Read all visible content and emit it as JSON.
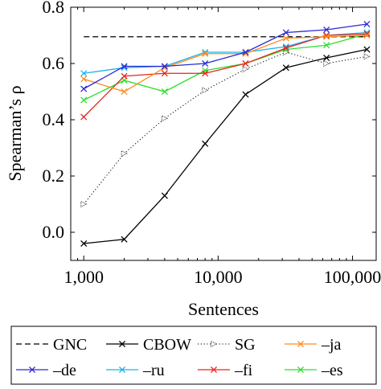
{
  "chart_data": {
    "type": "line",
    "title": "",
    "xlabel": "Sentences",
    "ylabel": "Spearman’s ρ",
    "x_scale": "log",
    "xlim": [
      800,
      150000
    ],
    "ylim": [
      -0.1,
      0.8
    ],
    "x_ticks": [
      {
        "value": 1000,
        "label": "1,000"
      },
      {
        "value": 10000,
        "label": "10,000"
      },
      {
        "value": 100000,
        "label": "100,000"
      }
    ],
    "y_ticks": [
      {
        "value": 0.0,
        "label": "0.0"
      },
      {
        "value": 0.2,
        "label": "0.2"
      },
      {
        "value": 0.4,
        "label": "0.4"
      },
      {
        "value": 0.6,
        "label": "0.6"
      },
      {
        "value": 0.8,
        "label": "0.8"
      }
    ],
    "grid": false,
    "legend_position": "bottom, outside",
    "series": [
      {
        "name": "GNC",
        "color": "#000000",
        "style": "dashed",
        "marker": "none",
        "x": [
          1000,
          128000
        ],
        "values": [
          0.695,
          0.695
        ]
      },
      {
        "name": "CBOW",
        "color": "#000000",
        "style": "solid",
        "marker": "x",
        "x": [
          1000,
          2000,
          4000,
          8000,
          16000,
          32000,
          64000,
          128000
        ],
        "values": [
          -0.04,
          -0.025,
          0.13,
          0.315,
          0.49,
          0.585,
          0.62,
          0.65
        ]
      },
      {
        "name": "SG",
        "color": "#000000",
        "style": "dotted",
        "marker": "triangle",
        "x": [
          1000,
          2000,
          4000,
          8000,
          16000,
          32000,
          64000,
          128000
        ],
        "values": [
          0.1,
          0.28,
          0.405,
          0.505,
          0.58,
          0.64,
          0.6,
          0.625
        ]
      },
      {
        "name": "–ja",
        "color": "#ff8c1a",
        "style": "solid",
        "marker": "x",
        "x": [
          1000,
          2000,
          4000,
          8000,
          16000,
          32000,
          64000,
          128000
        ],
        "values": [
          0.545,
          0.5,
          0.585,
          0.635,
          0.635,
          0.69,
          0.695,
          0.7
        ]
      },
      {
        "name": "–de",
        "color": "#2a2ad4",
        "style": "solid",
        "marker": "x",
        "x": [
          1000,
          2000,
          4000,
          8000,
          16000,
          32000,
          64000,
          128000
        ],
        "values": [
          0.51,
          0.59,
          0.59,
          0.6,
          0.64,
          0.71,
          0.72,
          0.74
        ]
      },
      {
        "name": "–ru",
        "color": "#1ab0f0",
        "style": "solid",
        "marker": "x",
        "x": [
          1000,
          2000,
          4000,
          8000,
          16000,
          32000,
          64000,
          128000
        ],
        "values": [
          0.565,
          0.585,
          0.59,
          0.64,
          0.64,
          0.66,
          0.7,
          0.71
        ]
      },
      {
        "name": "–fi",
        "color": "#e8261e",
        "style": "solid",
        "marker": "x",
        "x": [
          1000,
          2000,
          4000,
          8000,
          16000,
          32000,
          64000,
          128000
        ],
        "values": [
          0.41,
          0.555,
          0.565,
          0.565,
          0.6,
          0.655,
          0.7,
          0.705
        ]
      },
      {
        "name": "–es",
        "color": "#2be02b",
        "style": "solid",
        "marker": "x",
        "x": [
          1000,
          2000,
          4000,
          8000,
          16000,
          32000,
          64000,
          128000
        ],
        "values": [
          0.47,
          0.54,
          0.5,
          0.575,
          0.6,
          0.65,
          0.665,
          0.705
        ]
      }
    ]
  }
}
